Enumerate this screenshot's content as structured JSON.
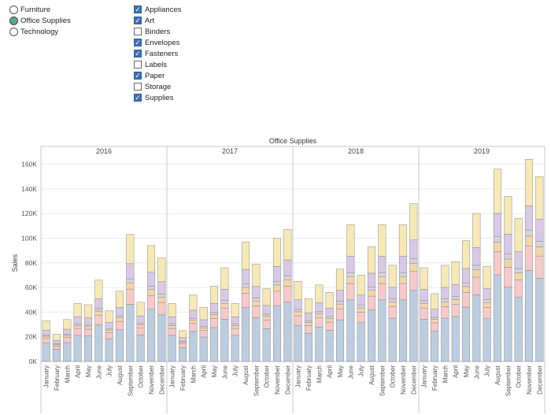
{
  "filters": {
    "category": {
      "options": [
        {
          "label": "Furniture",
          "selected": false
        },
        {
          "label": "Office Supplies",
          "selected": true
        },
        {
          "label": "Technology",
          "selected": false
        }
      ]
    },
    "subcategory": {
      "options": [
        {
          "label": "Appliances",
          "checked": true
        },
        {
          "label": "Art",
          "checked": true
        },
        {
          "label": "Binders",
          "checked": false
        },
        {
          "label": "Envelopes",
          "checked": true
        },
        {
          "label": "Fasteners",
          "checked": true
        },
        {
          "label": "Labels",
          "checked": false
        },
        {
          "label": "Paper",
          "checked": true
        },
        {
          "label": "Storage",
          "checked": false
        },
        {
          "label": "Supplies",
          "checked": true
        }
      ]
    }
  },
  "colors": {
    "segments": [
      "#bccde0",
      "#f7c9c9",
      "#f3d5aa",
      "#d7d2de",
      "#d8c9e6",
      "#f7e9b6"
    ],
    "segment_stroke": "#8a8a8a",
    "grid": "#ececec",
    "divider": "#c8c8c8",
    "text": "#555555"
  },
  "chart_data": {
    "type": "bar",
    "stacked": true,
    "title": "Office Supplies",
    "ylabel": "Sales",
    "ylim": [
      0,
      168000
    ],
    "yticks": [
      0,
      20000,
      40000,
      60000,
      80000,
      100000,
      120000,
      140000,
      160000
    ],
    "ytick_labels": [
      "0K",
      "20K",
      "40K",
      "60K",
      "80K",
      "100K",
      "120K",
      "140K",
      "160K"
    ],
    "years": [
      "2016",
      "2017",
      "2018",
      "2019"
    ],
    "months": [
      "January",
      "February",
      "March",
      "April",
      "May",
      "June",
      "July",
      "August",
      "September",
      "October",
      "November",
      "December"
    ],
    "totals": [
      [
        33000,
        22000,
        34000,
        47000,
        46000,
        66000,
        41000,
        57000,
        103000,
        48000,
        94000,
        84000
      ],
      [
        47000,
        25000,
        54000,
        44000,
        61000,
        76000,
        47000,
        97000,
        79000,
        59000,
        100000,
        107000
      ],
      [
        65000,
        51000,
        62000,
        56000,
        75000,
        111000,
        70000,
        93000,
        111000,
        78000,
        111000,
        128000
      ],
      [
        76000,
        55000,
        78000,
        81000,
        98000,
        120000,
        77000,
        156000,
        134000,
        116000,
        164000,
        150000
      ]
    ],
    "segment_fractions": [
      0.45,
      0.12,
      0.05,
      0.03,
      0.12,
      0.23
    ]
  }
}
